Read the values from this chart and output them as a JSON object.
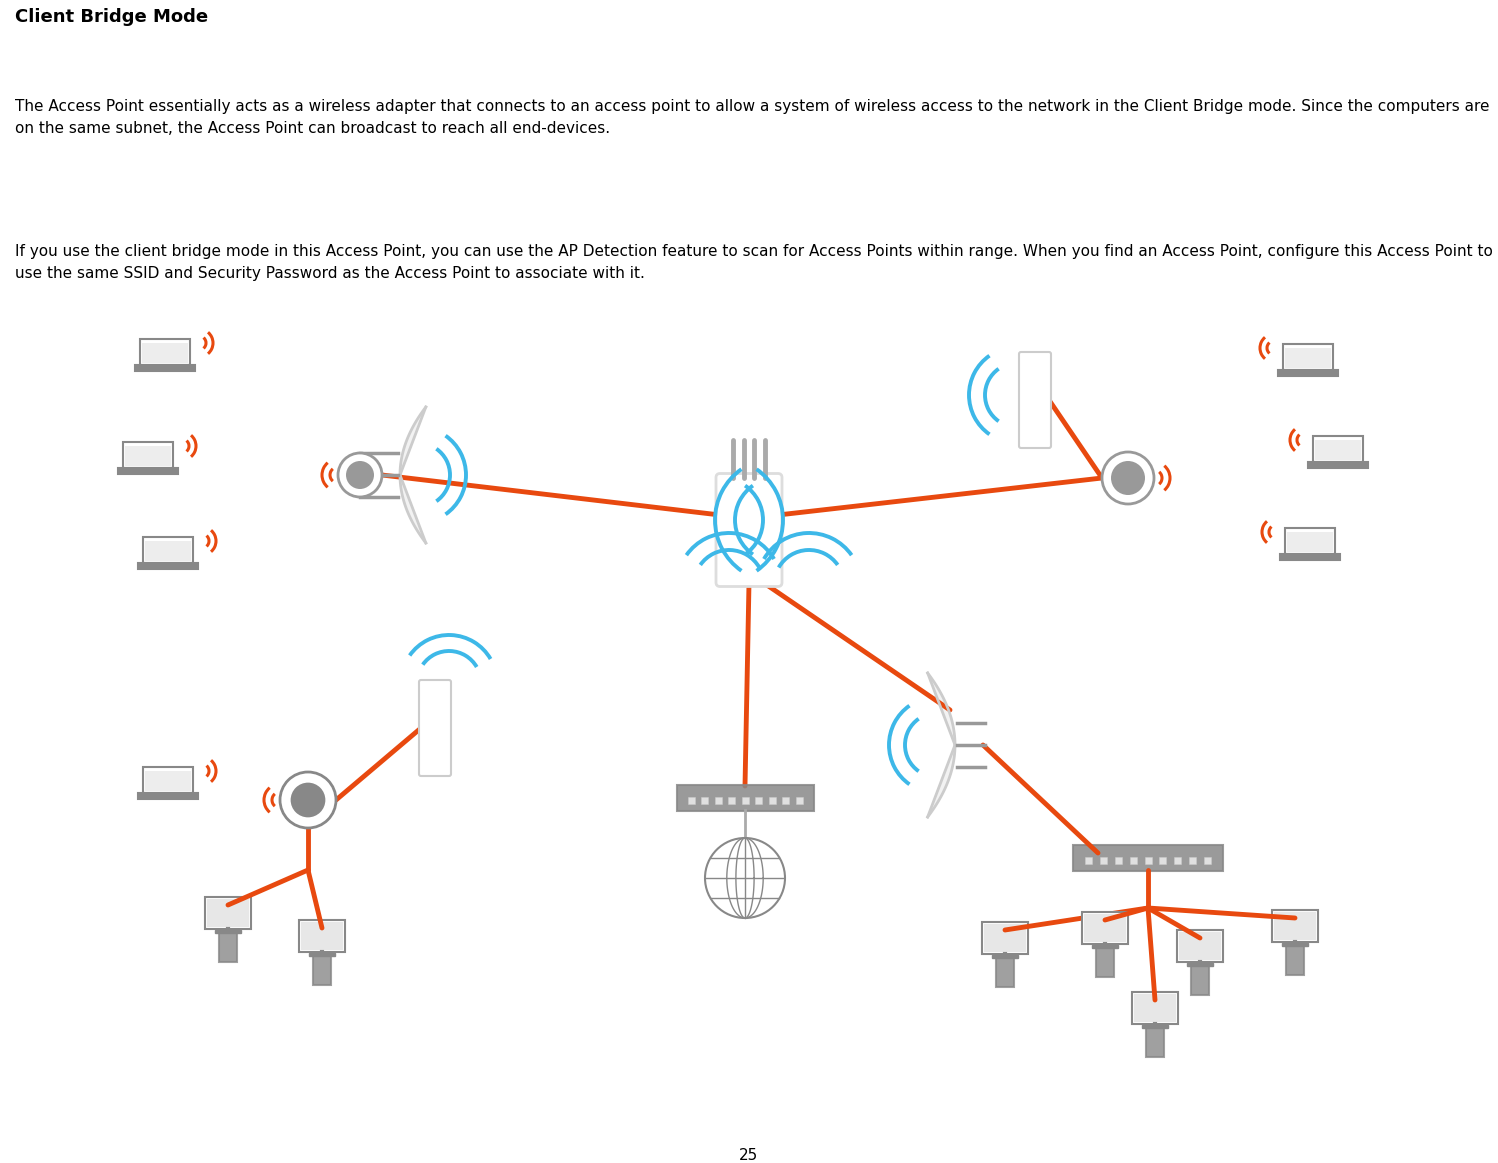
{
  "title": "Client Bridge Mode",
  "para1": "The Access Point essentially acts as a wireless adapter that connects to an access point to allow a system of wireless access to the network in the Client Bridge mode. Since the computers are on the same subnet, the Access Point can broadcast to reach all end-devices.",
  "para2": "If you use the client bridge mode in this Access Point, you can use the AP Detection feature to scan for Access Points within range. When you find an Access Point, configure this Access Point to use the same SSID and Security Password as the Access Point to associate with it.",
  "page_number": "25",
  "bg_color": "#ffffff",
  "text_color": "#000000",
  "title_fontsize": 13,
  "body_fontsize": 11,
  "orange_color": "#e8490f",
  "blue_color": "#3db8e8",
  "gray_color": "#888888",
  "light_gray": "#b0b0b0",
  "dark_gray": "#606060"
}
